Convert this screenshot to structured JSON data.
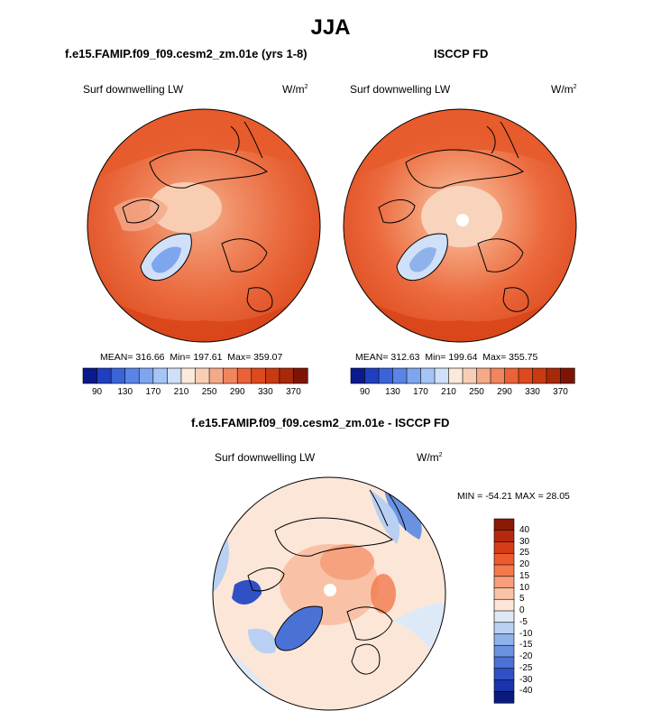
{
  "figure": {
    "title": "JJA",
    "panel_left_title": "f.e15.FAMIP.f09_f09.cesm2_zm.01e (yrs 1-8)",
    "panel_right_title": "ISCCP FD",
    "panel_bottom_title": "f.e15.FAMIP.f09_f09.cesm2_zm.01e - ISCCP FD",
    "variable": "Surf downwelling LW",
    "units_base": "W/m",
    "units_exp": "2"
  },
  "chart_data": [
    {
      "type": "heatmap",
      "projection": "polar-stereographic-north",
      "title": "f.e15.FAMIP.f09_f09.cesm2_zm.01e (yrs 1-8)",
      "variable": "Surf downwelling LW",
      "units": "W/m2",
      "stats": {
        "mean_label": "MEAN= 316.66",
        "min_label": "Min= 197.61",
        "max_label": "Max= 359.07"
      },
      "colorbar": {
        "orientation": "horizontal",
        "tick_labels": [
          "90",
          "130",
          "170",
          "210",
          "250",
          "290",
          "330",
          "370"
        ],
        "colors": [
          "#0a1a8c",
          "#1f3fbf",
          "#3a64d8",
          "#5a85e6",
          "#7ea6ef",
          "#a6c4f5",
          "#cfe0f8",
          "#fbe9dc",
          "#f8cfb6",
          "#f4a989",
          "#f08560",
          "#ea6238",
          "#dc4a1e",
          "#c73a12",
          "#a8280a",
          "#7d1505"
        ]
      }
    },
    {
      "type": "heatmap",
      "projection": "polar-stereographic-north",
      "title": "ISCCP FD",
      "variable": "Surf downwelling LW",
      "units": "W/m2",
      "stats": {
        "mean_label": "MEAN= 312.63",
        "min_label": "Min= 199.64",
        "max_label": "Max= 355.75"
      },
      "colorbar": {
        "orientation": "horizontal",
        "tick_labels": [
          "90",
          "130",
          "170",
          "210",
          "250",
          "290",
          "330",
          "370"
        ],
        "colors": [
          "#0a1a8c",
          "#1f3fbf",
          "#3a64d8",
          "#5a85e6",
          "#7ea6ef",
          "#a6c4f5",
          "#cfe0f8",
          "#fbe9dc",
          "#f8cfb6",
          "#f4a989",
          "#f08560",
          "#ea6238",
          "#dc4a1e",
          "#c73a12",
          "#a8280a",
          "#7d1505"
        ]
      }
    },
    {
      "type": "heatmap",
      "projection": "polar-stereographic-north",
      "title": "f.e15.FAMIP.f09_f09.cesm2_zm.01e - ISCCP FD",
      "variable": "Surf downwelling LW",
      "units": "W/m2",
      "stats": {
        "minmax_label": "MIN = -54.21  MAX =  28.05"
      },
      "colorbar": {
        "orientation": "vertical",
        "tick_labels": [
          "40",
          "30",
          "25",
          "20",
          "15",
          "10",
          "5",
          "0",
          "-5",
          "-10",
          "-15",
          "-20",
          "-25",
          "-30",
          "-40"
        ],
        "colors": [
          "#8a1a05",
          "#b52a0e",
          "#d43d18",
          "#ec5a2e",
          "#f37a4e",
          "#f79e7a",
          "#fac3a8",
          "#fde6d8",
          "#dde9f7",
          "#b9d0f2",
          "#8fb2ea",
          "#6a92e0",
          "#4a72d6",
          "#3050c6",
          "#1a34ac",
          "#0a1a7c"
        ]
      }
    }
  ]
}
